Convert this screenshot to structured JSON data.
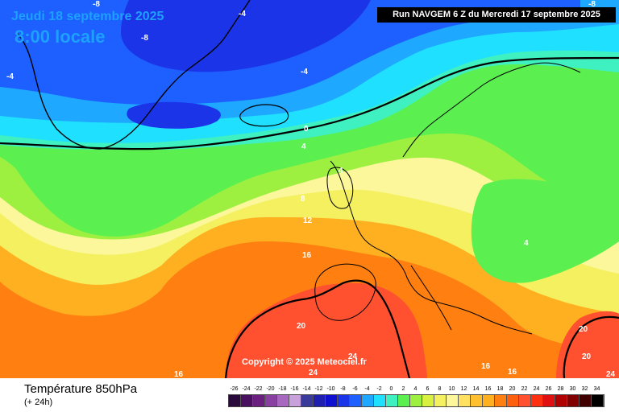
{
  "header": {
    "date_line": "Jeudi 18 septembre 2025",
    "time_line": "8:00 locale",
    "run_info": "Run NAVGEM 6 Z du Mercredi 17 septembre 2025"
  },
  "copyright": "Copyright © 2025 Meteociel.fr",
  "footer": {
    "title": "Température 850hPa",
    "subtitle": "(+ 24h)"
  },
  "colors": {
    "deep_blue": "#1c34e8",
    "blue": "#1d60ff",
    "light_blue": "#1ea8ff",
    "cyan": "#20e0ff",
    "aquamarine": "#3ff0c0",
    "green": "#5bf050",
    "lime": "#9ef040",
    "yellow": "#f4f060",
    "pale_yellow": "#fbf79a",
    "orange": "#ffb020",
    "dark_orange": "#ff8010",
    "red": "#ff5030"
  },
  "isotherm_labels": [
    {
      "id": "iso-minus8-a",
      "text": "-8"
    },
    {
      "id": "iso-minus8-b",
      "text": "-8"
    },
    {
      "id": "iso-minus4-a",
      "text": "-4"
    },
    {
      "id": "iso-minus4-b",
      "text": "-4"
    },
    {
      "id": "iso-minus4-c",
      "text": "-4"
    },
    {
      "id": "iso-minus8-c",
      "text": "-8"
    },
    {
      "id": "iso-0",
      "text": "0"
    },
    {
      "id": "iso-4-a",
      "text": "4"
    },
    {
      "id": "iso-4-b",
      "text": "4"
    },
    {
      "id": "iso-4-c",
      "text": "4"
    },
    {
      "id": "iso-8",
      "text": "8"
    },
    {
      "id": "iso-12",
      "text": "12"
    },
    {
      "id": "iso-16-a",
      "text": "16"
    },
    {
      "id": "iso-16-b",
      "text": "16"
    },
    {
      "id": "iso-16-c",
      "text": "16"
    },
    {
      "id": "iso-16-d",
      "text": "16"
    },
    {
      "id": "iso-20-a",
      "text": "20"
    },
    {
      "id": "iso-20-b",
      "text": "20"
    },
    {
      "id": "iso-20-c",
      "text": "20"
    },
    {
      "id": "iso-24-a",
      "text": "24"
    },
    {
      "id": "iso-24-b",
      "text": "24"
    },
    {
      "id": "iso-24-c",
      "text": "24"
    }
  ],
  "legend": {
    "ticks": [
      "-26",
      "-24",
      "-22",
      "-20",
      "-18",
      "-16",
      "-14",
      "-12",
      "-10",
      "-8",
      "-6",
      "-4",
      "-2",
      "0",
      "2",
      "4",
      "6",
      "8",
      "10",
      "12",
      "14",
      "16",
      "18",
      "20",
      "22",
      "24",
      "26",
      "28",
      "30",
      "32",
      "34"
    ],
    "colors": [
      "#2a0a3a",
      "#4a1060",
      "#6b2080",
      "#8a40a0",
      "#a868c0",
      "#c8a0dc",
      "#3a3a9a",
      "#2020b0",
      "#1010d0",
      "#1c34e8",
      "#1d60ff",
      "#1ea8ff",
      "#20e0ff",
      "#3ff0c0",
      "#5bf050",
      "#9ef040",
      "#d8f040",
      "#f4f060",
      "#fbf79a",
      "#ffe060",
      "#ffc030",
      "#ffb020",
      "#ff8010",
      "#ff6010",
      "#ff5030",
      "#ff3010",
      "#e01010",
      "#b00000",
      "#800000",
      "#400000",
      "#000000"
    ]
  }
}
